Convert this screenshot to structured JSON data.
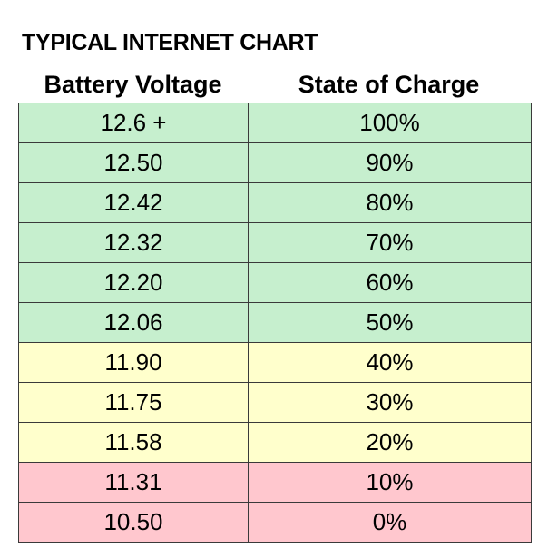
{
  "chart_data": {
    "type": "table",
    "title": "TYPICAL INTERNET CHART",
    "columns": [
      "Battery Voltage",
      "State of Charge"
    ],
    "rows": [
      {
        "voltage": "12.6 +",
        "state_of_charge": "100%",
        "color": "#c6efce"
      },
      {
        "voltage": "12.50",
        "state_of_charge": "90%",
        "color": "#c6efce"
      },
      {
        "voltage": "12.42",
        "state_of_charge": "80%",
        "color": "#c6efce"
      },
      {
        "voltage": "12.32",
        "state_of_charge": "70%",
        "color": "#c6efce"
      },
      {
        "voltage": "12.20",
        "state_of_charge": "60%",
        "color": "#c6efce"
      },
      {
        "voltage": "12.06",
        "state_of_charge": "50%",
        "color": "#c6efce"
      },
      {
        "voltage": "11.90",
        "state_of_charge": "40%",
        "color": "#ffffcc"
      },
      {
        "voltage": "11.75",
        "state_of_charge": "30%",
        "color": "#ffffcc"
      },
      {
        "voltage": "11.58",
        "state_of_charge": "20%",
        "color": "#ffffcc"
      },
      {
        "voltage": "11.31",
        "state_of_charge": "10%",
        "color": "#ffc7ce"
      },
      {
        "voltage": "10.50",
        "state_of_charge": "0%",
        "color": "#ffc7ce"
      }
    ]
  }
}
